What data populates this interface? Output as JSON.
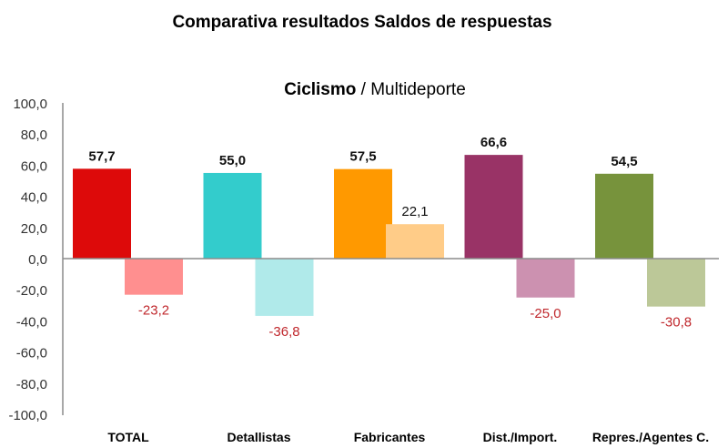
{
  "chart_data": {
    "type": "bar",
    "title": "Comparativa resultados Saldos de respuestas",
    "subtitle": {
      "bold": "Ciclismo",
      "rest": " / Multideporte"
    },
    "categories": [
      "TOTAL",
      "Detallistas",
      "Fabricantes",
      "Dist./Import.",
      "Repres./Agentes C."
    ],
    "series": [
      {
        "name": "Ciclismo",
        "values": [
          57.7,
          55.0,
          57.5,
          66.6,
          54.5
        ],
        "labels": [
          "57,7",
          "55,0",
          "57,5",
          "66,6",
          "54,5"
        ],
        "colors": [
          "#dd0a0a",
          "#33cccc",
          "#ff9900",
          "#993366",
          "#77933c"
        ]
      },
      {
        "name": "Multideporte",
        "values": [
          -23.2,
          -36.8,
          22.1,
          -25.0,
          -30.8
        ],
        "labels": [
          "-23,2",
          "-36,8",
          "22,1",
          "-25,0",
          "-30,8"
        ],
        "colors": [
          "#ff8f8f",
          "#b0eaea",
          "#ffcc88",
          "#cc91b0",
          "#bcc898"
        ]
      }
    ],
    "ylim": [
      -100,
      100
    ],
    "yticks": [
      "100,0",
      "80,0",
      "60,0",
      "40,0",
      "20,0",
      "0,0",
      "-20,0",
      "-40,0",
      "-60,0",
      "-80,0",
      "-100,0"
    ],
    "grid": false,
    "negative_label_color": "#c0282d"
  }
}
